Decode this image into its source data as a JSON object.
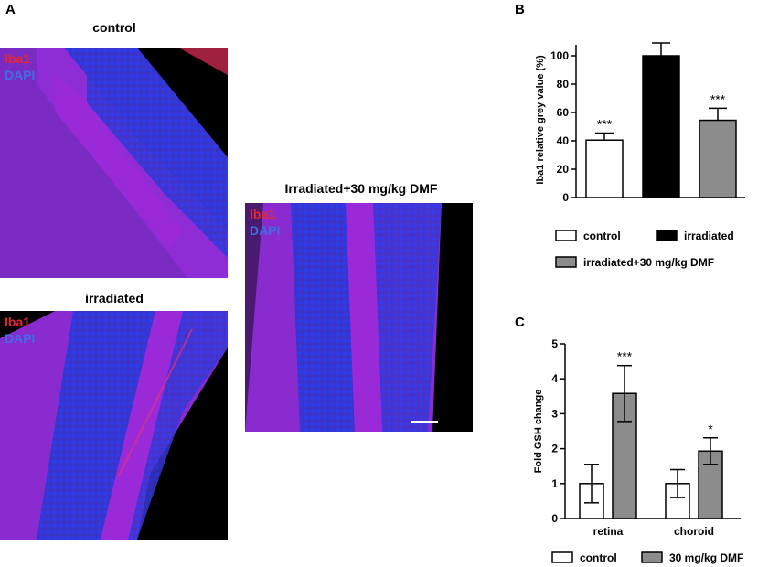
{
  "panels": {
    "a": "A",
    "b": "B",
    "c": "C"
  },
  "images": [
    {
      "title": "control",
      "label1": "Iba1",
      "label2": "DAPI"
    },
    {
      "title": "irradiated",
      "label1": "Iba1",
      "label2": "DAPI"
    },
    {
      "title": "Irradiated+30 mg/kg DMF",
      "label1": "Iba1",
      "label2": "DAPI"
    }
  ],
  "colors": {
    "iba1": "#e8272c",
    "dapi": "#3c6ee6",
    "tissue": "#8a2bd0",
    "nuclei": "#3a34c8",
    "control_bar": "#ffffff",
    "irradiated_bar": "#000000",
    "dmf_bar": "#8c8c8c"
  },
  "chart_data": [
    {
      "type": "bar",
      "panel": "B",
      "categories": [
        "control",
        "irradiated",
        "irradiated+30 mg/kg DMF"
      ],
      "values": [
        40.5,
        100,
        54.5
      ],
      "errors": [
        5,
        9,
        8.5
      ],
      "significance": [
        "***",
        "",
        "***"
      ],
      "fills": [
        "#ffffff",
        "#000000",
        "#8c8c8c"
      ],
      "ylabel": "Iba1 relative grey value (%)",
      "ylim": [
        0,
        120
      ],
      "yticks": [
        0,
        20,
        40,
        60,
        80,
        100
      ],
      "legend": [
        "control",
        "irradiated",
        "irradiated+30 mg/kg DMF"
      ],
      "legend_position": "bottom"
    },
    {
      "type": "bar",
      "panel": "C",
      "categories": [
        "retina",
        "choroid"
      ],
      "series": [
        {
          "name": "control",
          "values": [
            1.0,
            1.0
          ],
          "errors": [
            0.55,
            0.4
          ],
          "significance": [
            "",
            ""
          ],
          "fill": "#ffffff"
        },
        {
          "name": "30 mg/kg DMF",
          "values": [
            3.58,
            1.93
          ],
          "errors": [
            0.8,
            0.38
          ],
          "significance": [
            "***",
            "*"
          ],
          "fill": "#8c8c8c"
        }
      ],
      "ylabel": "Fold GSH change",
      "ylim": [
        0,
        5
      ],
      "yticks": [
        0,
        1,
        2,
        3,
        4,
        5
      ],
      "legend_position": "bottom"
    }
  ]
}
